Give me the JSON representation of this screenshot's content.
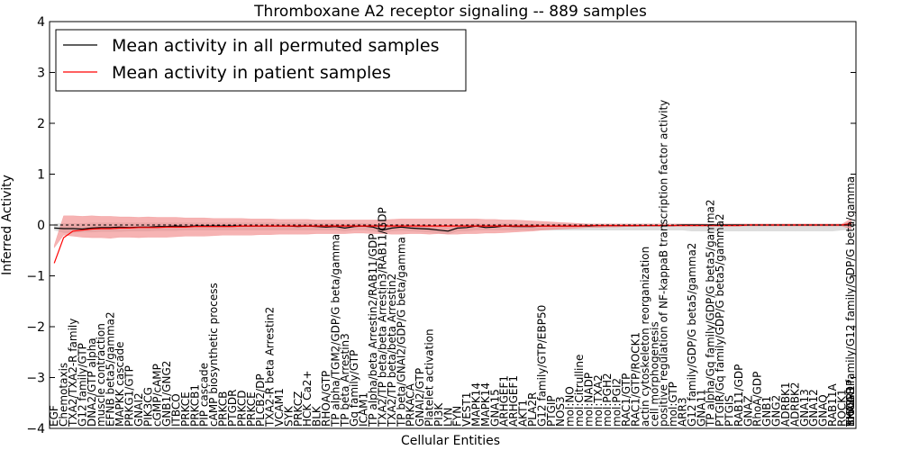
{
  "chart_data": {
    "type": "line",
    "title": "Thromboxane A2 receptor signaling -- 889 samples",
    "xlabel": "Cellular Entities",
    "ylabel": "Inferred Activity",
    "ylim": [
      -4,
      4
    ],
    "yticks": [
      -4,
      -3,
      -2,
      -1,
      0,
      1,
      2,
      3,
      4
    ],
    "grid": false,
    "legend_position": "top-left",
    "colors": {
      "permuted": "#000000",
      "patient": "#ff0000",
      "patient_band": "#f08080",
      "permuted_band": "#c8c8c8",
      "zero_line": "#000000"
    },
    "x": [
      1,
      3,
      5,
      7,
      9,
      11,
      13,
      15,
      17,
      19,
      21,
      23,
      25,
      27,
      29,
      31,
      33,
      35,
      37,
      39,
      41,
      43,
      45,
      47,
      49,
      51,
      53,
      55,
      57,
      59,
      61,
      63,
      65,
      67,
      69,
      71,
      73,
      75,
      77,
      79,
      81,
      83,
      85,
      87,
      89,
      91,
      93,
      95,
      97,
      99,
      101,
      103,
      105,
      107,
      109,
      111,
      113,
      115,
      117,
      119,
      121,
      123,
      125,
      127,
      129,
      131,
      133,
      135,
      137,
      139,
      141,
      143,
      145,
      147,
      149,
      151,
      153,
      155,
      157,
      159,
      161,
      163,
      165,
      167,
      169,
      171
    ],
    "x_range": [
      0,
      172
    ],
    "series": [
      {
        "name": "Mean activity in all permuted samples",
        "values": [
          -0.06,
          -0.07,
          -0.07,
          -0.08,
          -0.06,
          -0.05,
          -0.05,
          -0.04,
          -0.05,
          -0.04,
          -0.04,
          -0.03,
          -0.03,
          -0.02,
          -0.03,
          -0.02,
          -0.02,
          -0.02,
          -0.02,
          -0.02,
          -0.02,
          -0.02,
          -0.02,
          -0.02,
          -0.02,
          -0.02,
          -0.03,
          -0.02,
          -0.03,
          -0.04,
          -0.03,
          -0.06,
          -0.03,
          -0.02,
          -0.04,
          -0.1,
          -0.06,
          -0.04,
          -0.06,
          -0.07,
          -0.08,
          -0.1,
          -0.12,
          -0.06,
          -0.05,
          -0.02,
          -0.05,
          -0.04,
          -0.02,
          -0.03,
          -0.03,
          -0.03,
          -0.02,
          -0.02,
          -0.02,
          -0.02,
          -0.02,
          -0.02,
          -0.01,
          -0.01,
          -0.01,
          -0.01,
          -0.01,
          -0.01,
          -0.01,
          -0.01,
          -0.01,
          0.0,
          0.0,
          0.0,
          0.0,
          0.0,
          0.0,
          0.0,
          0.0,
          0.0,
          0.0,
          0.0,
          0.0,
          0.0,
          0.0,
          0.0,
          0.0,
          0.0,
          0.0,
          0.0
        ]
      },
      {
        "name": "Mean activity in patient samples",
        "values": [
          -0.75,
          -0.25,
          -0.12,
          -0.1,
          -0.08,
          -0.07,
          -0.07,
          -0.06,
          -0.06,
          -0.05,
          -0.05,
          -0.05,
          -0.04,
          -0.04,
          -0.04,
          -0.03,
          -0.03,
          -0.03,
          -0.03,
          -0.03,
          -0.02,
          -0.02,
          -0.02,
          -0.02,
          -0.02,
          -0.02,
          -0.02,
          -0.02,
          -0.02,
          -0.02,
          -0.02,
          -0.02,
          -0.02,
          -0.02,
          -0.02,
          -0.02,
          -0.02,
          -0.02,
          -0.02,
          -0.02,
          -0.02,
          -0.02,
          -0.02,
          -0.02,
          -0.02,
          -0.02,
          -0.02,
          -0.02,
          -0.02,
          -0.02,
          -0.02,
          -0.02,
          -0.02,
          -0.02,
          -0.02,
          -0.02,
          -0.02,
          -0.01,
          -0.01,
          -0.01,
          -0.01,
          -0.01,
          -0.01,
          -0.01,
          -0.01,
          -0.01,
          -0.01,
          -0.01,
          -0.01,
          -0.01,
          -0.01,
          -0.01,
          -0.01,
          -0.01,
          0.0,
          0.0,
          0.0,
          0.0,
          0.0,
          0.0,
          0.0,
          0.0,
          0.0,
          0.0,
          0.0,
          0.03
        ]
      }
    ],
    "patient_band": {
      "lower": [
        -0.45,
        -0.2,
        -0.22,
        -0.24,
        -0.25,
        -0.25,
        -0.26,
        -0.24,
        -0.24,
        -0.25,
        -0.24,
        -0.24,
        -0.24,
        -0.23,
        -0.22,
        -0.22,
        -0.22,
        -0.21,
        -0.2,
        -0.2,
        -0.2,
        -0.2,
        -0.19,
        -0.19,
        -0.18,
        -0.18,
        -0.18,
        -0.18,
        -0.17,
        -0.17,
        -0.17,
        -0.17,
        -0.16,
        -0.16,
        -0.17,
        -0.17,
        -0.18,
        -0.18,
        -0.17,
        -0.17,
        -0.18,
        -0.17,
        -0.18,
        -0.18,
        -0.17,
        -0.17,
        -0.16,
        -0.16,
        -0.15,
        -0.14,
        -0.13,
        -0.12,
        -0.1,
        -0.09,
        -0.08,
        -0.07,
        -0.06,
        -0.05,
        -0.05,
        -0.04,
        -0.04,
        -0.03,
        -0.03,
        -0.02,
        -0.02,
        -0.02,
        -0.02,
        -0.02,
        -0.02,
        -0.02,
        -0.02,
        -0.02,
        -0.02,
        -0.02,
        -0.02,
        -0.02,
        -0.02,
        -0.02,
        -0.02,
        -0.02,
        -0.02,
        -0.02,
        -0.02,
        -0.02,
        -0.02,
        -0.08
      ],
      "upper": [
        -0.4,
        0.18,
        0.18,
        0.17,
        0.18,
        0.17,
        0.17,
        0.16,
        0.16,
        0.15,
        0.16,
        0.15,
        0.15,
        0.15,
        0.14,
        0.14,
        0.14,
        0.13,
        0.13,
        0.13,
        0.13,
        0.12,
        0.12,
        0.12,
        0.11,
        0.11,
        0.11,
        0.11,
        0.1,
        0.1,
        0.1,
        0.1,
        0.1,
        0.1,
        0.1,
        0.1,
        0.11,
        0.12,
        0.12,
        0.12,
        0.12,
        0.12,
        0.12,
        0.12,
        0.12,
        0.12,
        0.11,
        0.11,
        0.1,
        0.1,
        0.09,
        0.08,
        0.07,
        0.06,
        0.05,
        0.04,
        0.03,
        0.02,
        0.02,
        0.02,
        0.02,
        0.02,
        0.02,
        0.02,
        0.02,
        0.02,
        0.02,
        0.02,
        0.02,
        0.02,
        0.02,
        0.02,
        0.02,
        0.02,
        0.02,
        0.02,
        0.02,
        0.02,
        0.02,
        0.02,
        0.02,
        0.02,
        0.02,
        0.02,
        0.02,
        0.12
      ]
    },
    "permuted_band": {
      "lower": [
        -0.1,
        -0.15,
        -0.15,
        -0.14,
        -0.14,
        -0.13,
        -0.13,
        -0.13,
        -0.12,
        -0.12,
        -0.12,
        -0.11,
        -0.11,
        -0.11,
        -0.1,
        -0.1,
        -0.1,
        -0.1,
        -0.1,
        -0.1,
        -0.1,
        -0.1,
        -0.1,
        -0.1,
        -0.1,
        -0.1,
        -0.1,
        -0.1,
        -0.1,
        -0.1,
        -0.1,
        -0.12,
        -0.1,
        -0.1,
        -0.12,
        -0.16,
        -0.12,
        -0.11,
        -0.12,
        -0.13,
        -0.14,
        -0.16,
        -0.18,
        -0.12,
        -0.12,
        -0.1,
        -0.1,
        -0.1,
        -0.1,
        -0.1,
        -0.1,
        -0.1,
        -0.1,
        -0.1,
        -0.1,
        -0.1,
        -0.1,
        -0.1,
        -0.1,
        -0.1,
        -0.1,
        -0.1,
        -0.1,
        -0.1,
        -0.1,
        -0.1,
        -0.1,
        -0.1,
        -0.12,
        -0.12,
        -0.12,
        -0.12,
        -0.12,
        -0.12,
        -0.12,
        -0.12,
        -0.12,
        -0.12,
        -0.12,
        -0.12,
        -0.12,
        -0.12,
        -0.12,
        -0.12,
        -0.1,
        -0.08
      ],
      "upper": [
        0.02,
        0.03,
        0.03,
        0.03,
        0.04,
        0.04,
        0.04,
        0.04,
        0.04,
        0.04,
        0.04,
        0.04,
        0.04,
        0.04,
        0.04,
        0.04,
        0.04,
        0.04,
        0.04,
        0.04,
        0.04,
        0.04,
        0.04,
        0.04,
        0.04,
        0.04,
        0.04,
        0.04,
        0.03,
        0.03,
        0.03,
        0.02,
        0.03,
        0.03,
        0.02,
        0.0,
        0.01,
        0.02,
        0.01,
        0.01,
        0.0,
        -0.02,
        -0.04,
        0.0,
        0.01,
        0.03,
        0.02,
        0.02,
        0.03,
        0.02,
        0.02,
        0.02,
        0.02,
        0.02,
        0.02,
        0.02,
        0.02,
        0.02,
        0.02,
        0.02,
        0.02,
        0.02,
        0.02,
        0.02,
        0.02,
        0.02,
        0.02,
        0.02,
        0.02,
        0.02,
        0.02,
        0.02,
        0.02,
        0.02,
        0.02,
        0.02,
        0.02,
        0.02,
        0.02,
        0.02,
        0.02,
        0.02,
        0.02,
        0.02,
        0.02,
        0.06
      ]
    },
    "entity_labels": [
      {
        "x": 1,
        "label": "EGF"
      },
      {
        "x": 3,
        "label": "Chemotaxis"
      },
      {
        "x": 5,
        "label": "TXA2/TXA2-R family"
      },
      {
        "x": 7,
        "label": "G12 family/GTP"
      },
      {
        "x": 9,
        "label": "DNA2/GTP alpha"
      },
      {
        "x": 11,
        "label": "muscle contraction"
      },
      {
        "x": 13,
        "label": "EFNB beta5/gamma2"
      },
      {
        "x": 15,
        "label": "MAPKK cascade"
      },
      {
        "x": 17,
        "label": "PRKG1/GTP"
      },
      {
        "x": 19,
        "label": "GNAI2"
      },
      {
        "x": 21,
        "label": "PIK3CG"
      },
      {
        "x": 23,
        "label": "cGMP/cAMP"
      },
      {
        "x": 25,
        "label": "GNB1/GNG2"
      },
      {
        "x": 27,
        "label": "ITBCO"
      },
      {
        "x": 29,
        "label": "PRKCE"
      },
      {
        "x": 31,
        "label": "PRKCB1"
      },
      {
        "x": 33,
        "label": "PIP cascade"
      },
      {
        "x": 35,
        "label": "cAMP biosynthetic process"
      },
      {
        "x": 37,
        "label": "PRKCB"
      },
      {
        "x": 39,
        "label": "PTGDR"
      },
      {
        "x": 41,
        "label": "PRKCD"
      },
      {
        "x": 43,
        "label": "PRKCE"
      },
      {
        "x": 45,
        "label": "PLCB2/DP"
      },
      {
        "x": 47,
        "label": "TXA2-R beta Arrestin2"
      },
      {
        "x": 49,
        "label": "VCAM1"
      },
      {
        "x": 51,
        "label": "SYK"
      },
      {
        "x": 53,
        "label": "PRKCZ"
      },
      {
        "x": 55,
        "label": "HCK Ca2+"
      },
      {
        "x": 57,
        "label": "BLK"
      },
      {
        "x": 59,
        "label": "RHOA/GTP"
      },
      {
        "x": 61,
        "label": "TP alpha/TGM2/GDP/G beta/gamma"
      },
      {
        "x": 63,
        "label": "TP beta Arrestin3"
      },
      {
        "x": 65,
        "label": "Gq family/GTP"
      },
      {
        "x": 67,
        "label": "ICAM1"
      },
      {
        "x": 69,
        "label": "TP alpha/beta Arrestin2/RAB11/GDP"
      },
      {
        "x": 71,
        "label": "TXA2/TP beta/beta Arrestin3/RAB11/GDP"
      },
      {
        "x": 73,
        "label": "TXA2/TP beta/beta Arrestin2"
      },
      {
        "x": 75,
        "label": "TP beta/GNAI2/GDP/G beta/gamma"
      },
      {
        "x": 77,
        "label": "PRKACA"
      },
      {
        "x": 79,
        "label": "GNAI2/GTP"
      },
      {
        "x": 81,
        "label": "Platelet activation"
      },
      {
        "x": 83,
        "label": "PI3K"
      },
      {
        "x": 85,
        "label": "LYN"
      },
      {
        "x": 87,
        "label": "FYN"
      },
      {
        "x": 89,
        "label": "VEST1"
      },
      {
        "x": 91,
        "label": "MAPK14"
      },
      {
        "x": 93,
        "label": "MAPK14"
      },
      {
        "x": 95,
        "label": "GNA15"
      },
      {
        "x": 97,
        "label": "ARHGEF1"
      },
      {
        "x": 99,
        "label": "ARHGEF1"
      },
      {
        "x": 101,
        "label": "AKT1"
      },
      {
        "x": 103,
        "label": "PLA2R"
      },
      {
        "x": 105,
        "label": "G12 family/GTP/EBP50"
      },
      {
        "x": 107,
        "label": "PTGIP"
      },
      {
        "x": 109,
        "label": "NOS3"
      },
      {
        "x": 111,
        "label": "mol:NO"
      },
      {
        "x": 113,
        "label": "mol:Citrulline"
      },
      {
        "x": 115,
        "label": "mol:NADP"
      },
      {
        "x": 117,
        "label": "mol:TXA2"
      },
      {
        "x": 119,
        "label": "mol:PGH2"
      },
      {
        "x": 121,
        "label": "mol:PGI2"
      },
      {
        "x": 123,
        "label": "RAC1/GTP"
      },
      {
        "x": 125,
        "label": "RAC1/GTP/ROCK1"
      },
      {
        "x": 127,
        "label": "actin cytoskeleton reorganization"
      },
      {
        "x": 129,
        "label": "cell morphogenesis"
      },
      {
        "x": 131,
        "label": "positive regulation of NF-kappaB transcription factor activity"
      },
      {
        "x": 133,
        "label": "mol:GTP"
      },
      {
        "x": 135,
        "label": "ARR3"
      },
      {
        "x": 137,
        "label": "G12 family/GDP/G beta5/gamma2"
      },
      {
        "x": 139,
        "label": "GNA11"
      },
      {
        "x": 141,
        "label": "TP alpha/Gq family/GDP/G beta5/gamma2"
      },
      {
        "x": 143,
        "label": "PTGIR/Gq family/GDP/G beta5/gamma2"
      },
      {
        "x": 145,
        "label": "PTGIS"
      },
      {
        "x": 147,
        "label": "RAB11/GDP"
      },
      {
        "x": 149,
        "label": "GNAZ"
      },
      {
        "x": 151,
        "label": "RhoA/GDP"
      },
      {
        "x": 153,
        "label": "GNB1"
      },
      {
        "x": 155,
        "label": "GNG2"
      },
      {
        "x": 157,
        "label": "ADRBK1"
      },
      {
        "x": 159,
        "label": "ADRBK2"
      },
      {
        "x": 161,
        "label": "GNA13"
      },
      {
        "x": 163,
        "label": "GNA12"
      },
      {
        "x": 165,
        "label": "GNAQ"
      },
      {
        "x": 167,
        "label": "RAB11A"
      },
      {
        "x": 169,
        "label": "ROCK1"
      },
      {
        "x": 171,
        "label": "RHOA"
      },
      {
        "x": 172,
        "label": "SIGGR1"
      },
      {
        "x": 173,
        "label": "mol:GDP"
      },
      {
        "x": 174,
        "label": "TXA2-R family/G12 family/GDP/G beta/gamma"
      }
    ]
  }
}
